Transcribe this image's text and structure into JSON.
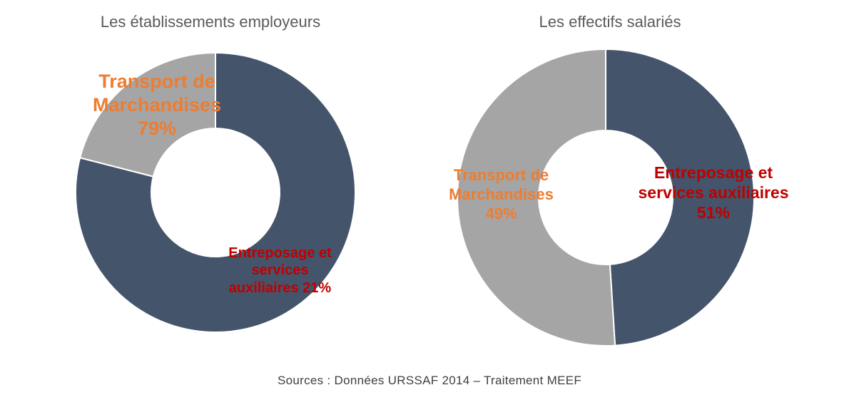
{
  "colors": {
    "transport": "#44546A",
    "entreposage": "#A5A5A5",
    "label_transport": "#ED7D31",
    "label_entreposage": "#C00000"
  },
  "chart_data": [
    {
      "type": "pie",
      "variant": "donut",
      "title": "Les établissements employeurs",
      "categories": [
        "Transport de Marchandises",
        "Entreposage et services auxiliaires"
      ],
      "values": [
        79,
        21
      ],
      "labels": {
        "transport": [
          "Transport de",
          "Marchandises",
          "79%"
        ],
        "entreposage": [
          "Entreposage et",
          "services",
          "auxiliaires  21%"
        ]
      }
    },
    {
      "type": "pie",
      "variant": "donut",
      "title": "Les effectifs salariés",
      "categories": [
        "Transport de Marchandises",
        "Entreposage et services auxiliaires"
      ],
      "values": [
        49,
        51
      ],
      "labels": {
        "transport": [
          "Transport de",
          "Marchandises",
          "49%"
        ],
        "entreposage": [
          "Entreposage et",
          "services auxiliaires",
          "51%"
        ]
      }
    }
  ],
  "source": "Sources : Données URSSAF 2014 – Traitement MEEF"
}
